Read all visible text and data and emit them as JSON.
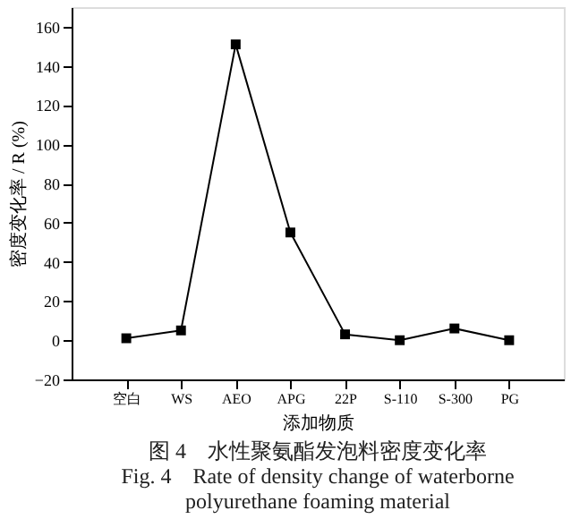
{
  "chart_data": {
    "type": "line",
    "xlabel": "添加物质",
    "ylabel": "密度变化率 / R (%)",
    "categories": [
      "空白",
      "WS",
      "AEO",
      "APG",
      "22P",
      "S-110",
      "S-300",
      "PG"
    ],
    "series": [
      {
        "color": "#000000",
        "values": [
          1,
          5,
          151,
          55,
          3,
          0,
          6,
          0
        ]
      }
    ],
    "ylim": [
      -20,
      170
    ],
    "yticks": [
      -20,
      0,
      20,
      40,
      60,
      80,
      100,
      120,
      140,
      160
    ],
    "marker": "square",
    "line_style": "solid",
    "grid": false,
    "annotations": [
      "图 4　水性聚氨酯发泡料密度变化率",
      "Fig. 4　Rate of density change of waterborne polyurethane foaming material"
    ]
  }
}
